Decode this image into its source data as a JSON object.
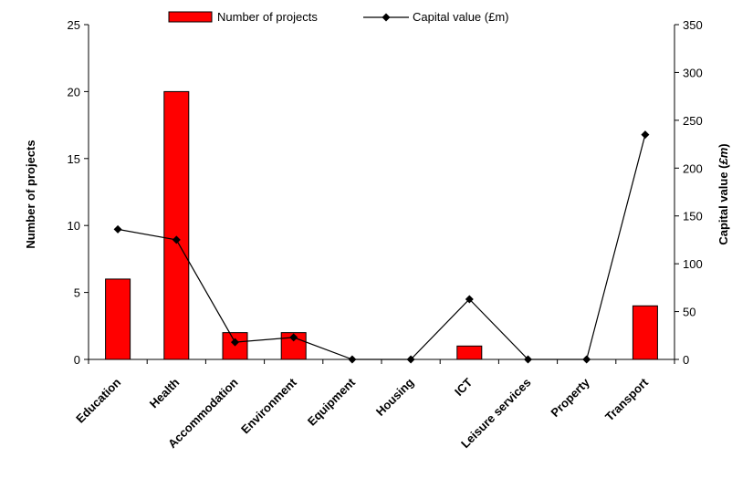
{
  "chart_data": {
    "type": "bar",
    "categories": [
      "Education",
      "Health",
      "Accommodation",
      "Environment",
      "Equipment",
      "Housing",
      "ICT",
      "Leisure services",
      "Property",
      "Transport"
    ],
    "series": [
      {
        "name": "Number of projects",
        "type": "bar",
        "axis": "left",
        "values": [
          6,
          20,
          2,
          2,
          0,
          0,
          1,
          0,
          0,
          4
        ]
      },
      {
        "name": "Capital value (£m)",
        "type": "line",
        "axis": "right",
        "values": [
          136,
          125,
          18,
          23,
          0,
          0,
          63,
          0,
          0,
          235
        ]
      }
    ],
    "ylabel": "Number of projects",
    "y2label_parts": [
      "Capital value (",
      "£m",
      ")"
    ],
    "ylim": [
      0,
      25
    ],
    "y2lim": [
      0,
      350
    ],
    "yticks": [
      0,
      5,
      10,
      15,
      20,
      25
    ],
    "y2ticks": [
      0,
      50,
      100,
      150,
      200,
      250,
      300,
      350
    ],
    "legend_position": "top",
    "grid": false,
    "colors": {
      "bar": "#ff0000",
      "bar_edge": "#000000",
      "line": "#000000"
    }
  }
}
